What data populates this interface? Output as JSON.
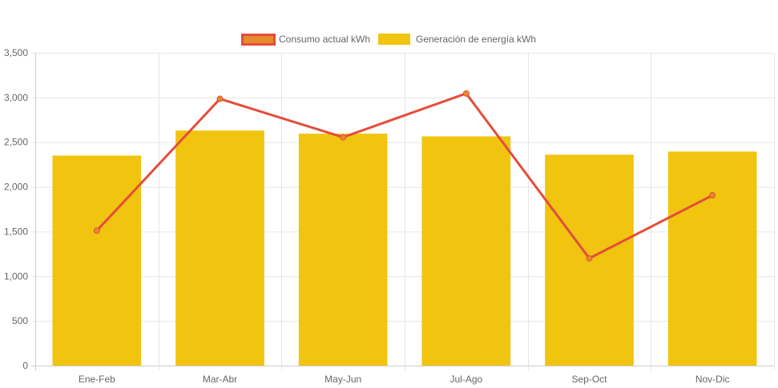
{
  "chart_data": {
    "type": "bar",
    "categories": [
      "Ene-Feb",
      "Mar-Abr",
      "May-Jun",
      "Jul-Ago",
      "Sep-Oct",
      "Nov-Dic"
    ],
    "series": [
      {
        "name": "Consumo actual kWh",
        "type": "line",
        "color": "#e44d3a",
        "fill_color": "#e68a2e",
        "values": [
          1510,
          2985,
          2555,
          3045,
          1200,
          1905
        ]
      },
      {
        "name": "Generación de energía kWh",
        "type": "bar",
        "color": "#f1c40f",
        "values": [
          2350,
          2630,
          2595,
          2565,
          2360,
          2395
        ]
      }
    ],
    "ylim": [
      0,
      3500
    ],
    "yticks": [
      0,
      500,
      1000,
      1500,
      2000,
      2500,
      3000,
      3500
    ],
    "ytick_labels": [
      "0",
      "500",
      "1,000",
      "1,500",
      "2,000",
      "2,500",
      "3,000",
      "3,500"
    ],
    "grid": true,
    "legend_position": "top-center",
    "title": "",
    "xlabel": "",
    "ylabel": ""
  }
}
